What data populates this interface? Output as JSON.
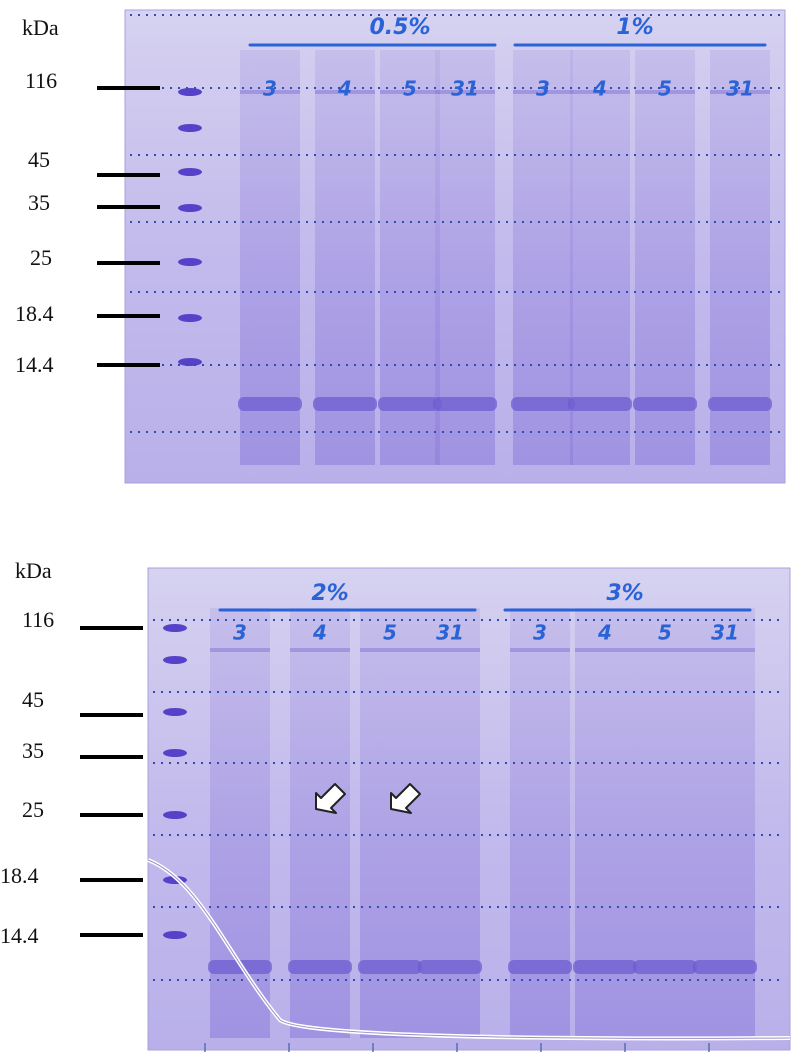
{
  "panels": [
    {
      "unit": "kDa",
      "markers": [
        "116",
        "45",
        "35",
        "25",
        "18.4",
        "14.4"
      ],
      "groups": [
        {
          "label": "0.5%",
          "lanes": [
            "3",
            "4",
            "5",
            "31"
          ]
        },
        {
          "label": "1%",
          "lanes": [
            "3",
            "4",
            "5",
            "31"
          ]
        }
      ]
    },
    {
      "unit": "kDa",
      "markers": [
        "116",
        "45",
        "35",
        "25",
        "18.4",
        "14.4"
      ],
      "groups": [
        {
          "label": "2%",
          "lanes": [
            "3",
            "4",
            "5",
            "31"
          ]
        },
        {
          "label": "3%",
          "lanes": [
            "3",
            "4",
            "5",
            "31"
          ]
        }
      ]
    }
  ]
}
